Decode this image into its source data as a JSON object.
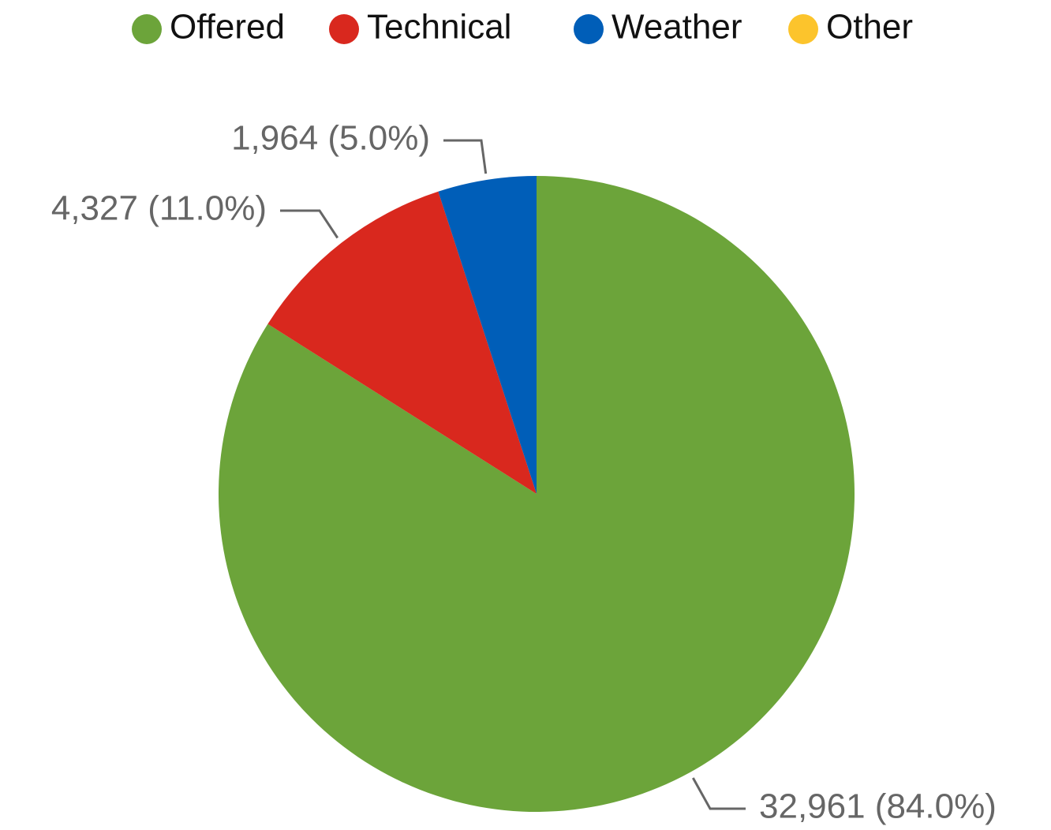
{
  "chart_data": {
    "type": "pie",
    "categories": [
      "Offered",
      "Technical",
      "Weather",
      "Other"
    ],
    "values": [
      32961,
      4327,
      1964,
      0
    ],
    "value_labels": [
      "32,961 (84.0%)",
      "4,327 (11.0%)",
      "1,964 (5.0%)",
      null
    ],
    "colors": [
      "#6ca43a",
      "#d9281e",
      "#005eb8",
      "#fcc42c"
    ],
    "legend": "top"
  }
}
